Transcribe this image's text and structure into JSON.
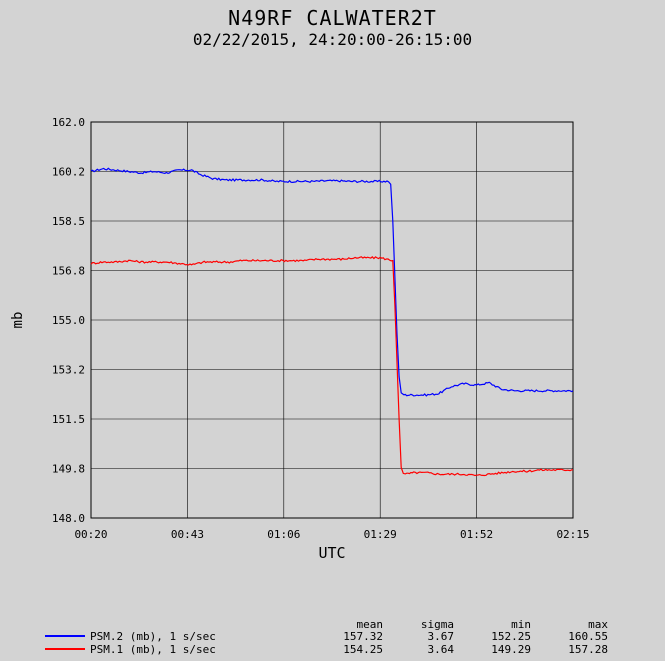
{
  "title": "N49RF CALWATER2T",
  "subtitle": "02/22/2015, 24:20:00-26:15:00",
  "chart_data": {
    "type": "line",
    "xlabel": "UTC",
    "ylabel": "mb",
    "xlim_min": [
      20,
      135
    ],
    "ylim": [
      148.0,
      162.0
    ],
    "x_ticks": [
      "00:20",
      "00:43",
      "01:06",
      "01:29",
      "01:52",
      "02:15"
    ],
    "y_ticks": [
      "148.0",
      "149.8",
      "151.5",
      "153.2",
      "155.0",
      "156.8",
      "158.5",
      "160.2",
      "162.0"
    ],
    "grid": true,
    "series": [
      {
        "name": "PSM.2 (mb), 1 s/sec",
        "color": "#0000ff",
        "x": [
          20,
          23,
          26,
          29,
          32,
          35,
          38,
          41,
          44,
          46,
          49,
          52,
          55,
          58,
          61,
          64,
          67,
          70,
          73,
          76,
          79,
          82,
          85,
          88,
          91,
          91.5,
          92,
          92.5,
          93,
          93.5,
          94,
          95,
          97,
          100,
          103,
          106,
          109,
          112,
          115,
          118,
          121,
          124,
          127,
          130,
          133,
          135
        ],
        "values": [
          160.25,
          160.35,
          160.3,
          160.25,
          160.2,
          160.25,
          160.2,
          160.3,
          160.3,
          160.15,
          160.0,
          159.95,
          159.95,
          159.95,
          159.95,
          159.9,
          159.9,
          159.9,
          159.9,
          159.92,
          159.92,
          159.9,
          159.9,
          159.9,
          159.9,
          159.8,
          158.5,
          156.5,
          154.5,
          153.0,
          152.4,
          152.35,
          152.35,
          152.35,
          152.4,
          152.65,
          152.75,
          152.7,
          152.78,
          152.55,
          152.5,
          152.5,
          152.5,
          152.5,
          152.5,
          152.5
        ]
      },
      {
        "name": "PSM.1 (mb), 1 s/sec",
        "color": "#ff0000",
        "x": [
          20,
          23,
          26,
          29,
          32,
          35,
          38,
          41,
          44,
          47,
          50,
          53,
          56,
          59,
          62,
          65,
          68,
          71,
          74,
          77,
          80,
          83,
          86,
          89,
          92,
          92.5,
          93,
          93.5,
          94,
          94.5,
          95,
          97,
          100,
          103,
          106,
          109,
          112,
          115,
          118,
          121,
          124,
          127,
          130,
          133,
          135
        ],
        "values": [
          157.0,
          157.05,
          157.05,
          157.1,
          157.05,
          157.05,
          157.05,
          157.0,
          156.95,
          157.05,
          157.05,
          157.05,
          157.1,
          157.1,
          157.1,
          157.1,
          157.1,
          157.1,
          157.15,
          157.15,
          157.15,
          157.2,
          157.2,
          157.2,
          157.1,
          155.5,
          153.5,
          151.5,
          149.8,
          149.6,
          149.55,
          149.6,
          149.6,
          149.55,
          149.55,
          149.55,
          149.5,
          149.55,
          149.6,
          149.65,
          149.65,
          149.7,
          149.7,
          149.7,
          149.7
        ]
      }
    ],
    "stats_headers": [
      "mean",
      "sigma",
      "min",
      "max"
    ],
    "stats": [
      {
        "mean": "157.32",
        "sigma": "3.67",
        "min": "152.25",
        "max": "160.55"
      },
      {
        "mean": "154.25",
        "sigma": "3.64",
        "min": "149.29",
        "max": "157.28"
      }
    ]
  }
}
